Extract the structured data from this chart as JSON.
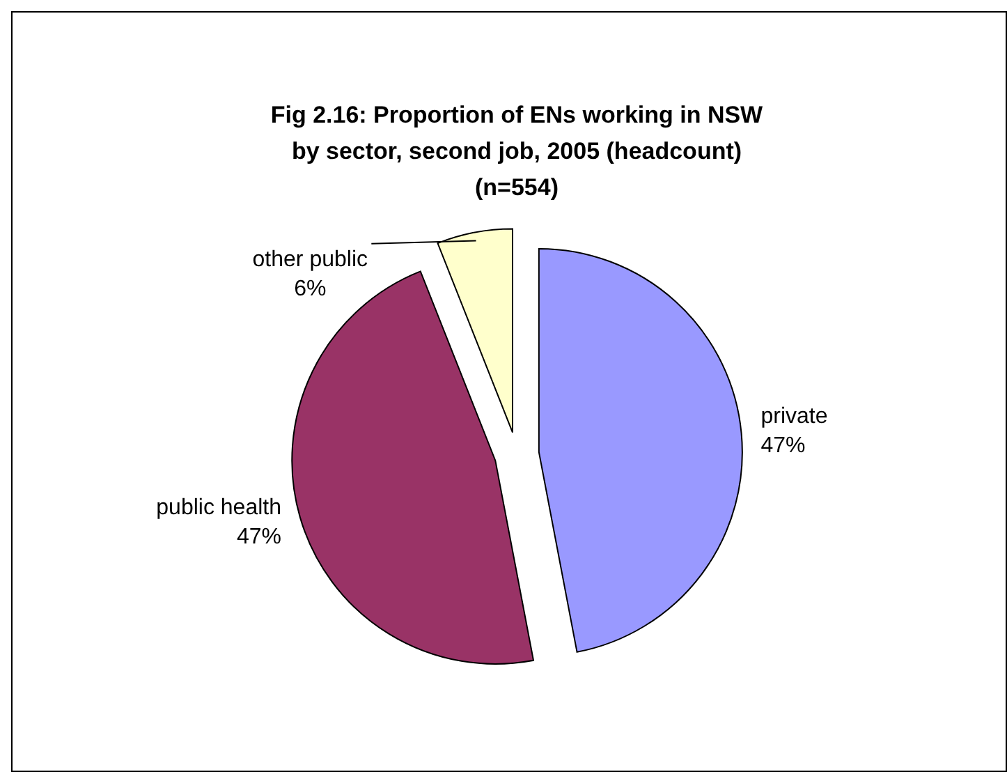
{
  "chart_data": {
    "type": "pie",
    "title": "Fig 2.16: Proportion of ENs working in NSW\nby sector, second job, 2005 (headcount)\n(n=554)",
    "categories": [
      "private",
      "public health",
      "other public"
    ],
    "values": [
      47,
      47,
      6
    ],
    "value_labels": [
      "47%",
      "47%",
      "6%"
    ],
    "colors": [
      "#9999ff",
      "#993366",
      "#ffffcc"
    ]
  }
}
